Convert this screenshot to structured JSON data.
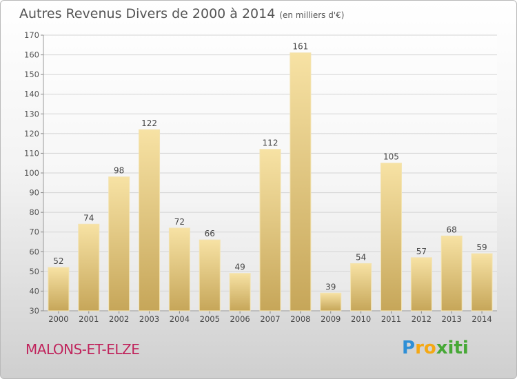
{
  "header": {
    "title": "Autres Revenus Divers de 2000 à 2014",
    "unit": "(en milliers d'€)"
  },
  "footer": {
    "place": "MALONS-ET-ELZE",
    "logo": "Proxiti"
  },
  "colors": {
    "bar_light": "#f7e2a4",
    "bar_dark": "#c8a75a",
    "place": "#c0245c"
  },
  "chart_data": {
    "type": "bar",
    "title": "Autres Revenus Divers de 2000 à 2014",
    "categories": [
      "2000",
      "2001",
      "2002",
      "2003",
      "2004",
      "2005",
      "2006",
      "2007",
      "2008",
      "2009",
      "2010",
      "2011",
      "2012",
      "2013",
      "2014"
    ],
    "values": [
      52,
      74,
      98,
      122,
      72,
      66,
      49,
      112,
      161,
      39,
      54,
      105,
      57,
      68,
      59
    ],
    "ylim": [
      30,
      170
    ],
    "yticks": [
      30,
      40,
      50,
      60,
      70,
      80,
      90,
      100,
      110,
      120,
      130,
      140,
      150,
      160,
      170
    ],
    "grid": true,
    "xlabel": "",
    "ylabel": ""
  }
}
